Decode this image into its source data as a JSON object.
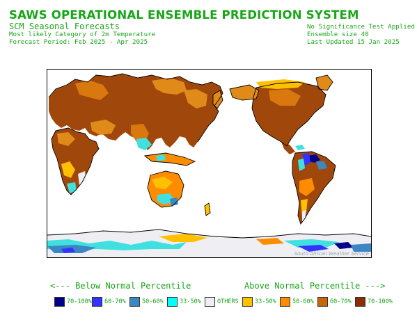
{
  "header": {
    "title": "SAWS OPERATIONAL ENSEMBLE PREDICTION SYSTEM",
    "subtitle": "SCM Seasonal Forecasts",
    "line2": "Most likely Category of 2m Temperature",
    "line3": "Forecast Period: Feb 2025 - Apr 2025",
    "right1": "No Significance Test Applied",
    "right2": "Ensemble size 40",
    "right3": "Last Updated 15 Jan 2025"
  },
  "map": {
    "credit": "South African Weather Service"
  },
  "legend": {
    "below_label": "<--- Below Normal Percentile",
    "above_label": "Above Normal Percentile --->",
    "items": [
      {
        "label": "70-100%",
        "color": "#00008b"
      },
      {
        "label": "60-70%",
        "color": "#3333ff"
      },
      {
        "label": "50-60%",
        "color": "#3b87c4"
      },
      {
        "label": "33-50%",
        "color": "#00ffff"
      },
      {
        "label": "OTHERS",
        "color": "#eeeef3"
      },
      {
        "label": "33-50%",
        "color": "#ffc000"
      },
      {
        "label": "50-60%",
        "color": "#ff8c00"
      },
      {
        "label": "60-70%",
        "color": "#c8640a"
      },
      {
        "label": "70-100%",
        "color": "#8b2d05"
      }
    ]
  }
}
